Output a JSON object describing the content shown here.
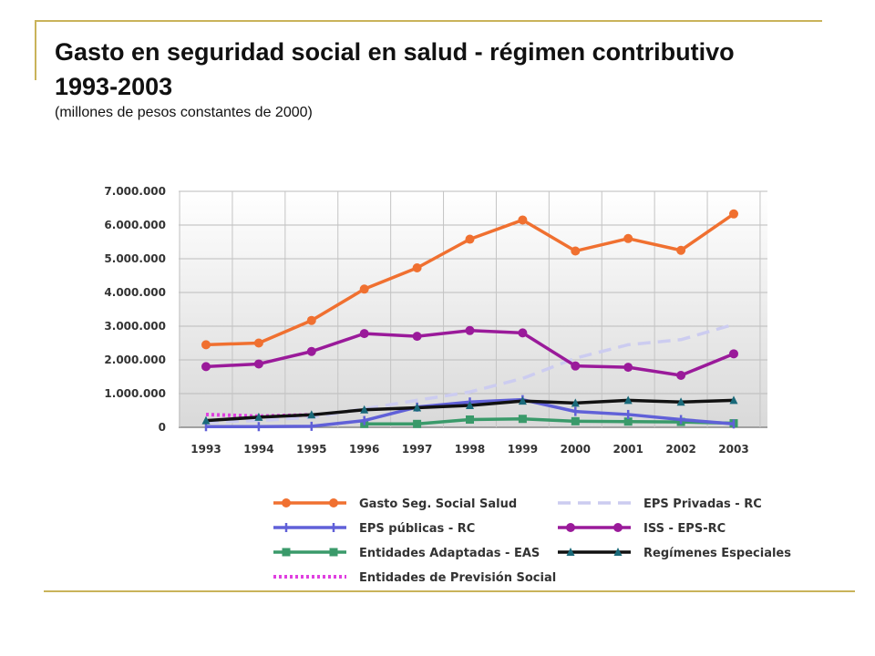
{
  "header": {
    "title": "Gasto en seguridad social en salud - régimen contributivo  1993-2003",
    "subtitle": "(millones de pesos constantes de 2000)"
  },
  "chart_data": {
    "type": "line",
    "x": [
      "1993",
      "1994",
      "1995",
      "1996",
      "1997",
      "1998",
      "1999",
      "2000",
      "2001",
      "2002",
      "2003"
    ],
    "ylim": [
      0,
      7000000
    ],
    "yticks": [
      0,
      1000000,
      2000000,
      3000000,
      4000000,
      5000000,
      6000000,
      7000000
    ],
    "ytick_labels": [
      "0",
      "1.000.000",
      "2.000.000",
      "3.000.000",
      "4.000.000",
      "5.000.000",
      "6.000.000",
      "7.000.000"
    ],
    "grid": true,
    "legend_position": "bottom",
    "series": [
      {
        "name": "Gasto Seg. Social Salud",
        "color": "#f07030",
        "marker": "circle",
        "dash": "solid",
        "values": [
          2450000,
          2500000,
          3170000,
          4100000,
          4730000,
          5580000,
          6150000,
          5230000,
          5600000,
          5250000,
          6330000
        ]
      },
      {
        "name": "EPS Privadas - RC",
        "color": "#ccccf0",
        "marker": "none",
        "dash": "dashed",
        "values": [
          150000,
          200000,
          300000,
          550000,
          800000,
          1050000,
          1450000,
          2050000,
          2450000,
          2600000,
          3050000
        ]
      },
      {
        "name": "EPS públicas - RC",
        "color": "#6060d8",
        "marker": "plus",
        "dash": "solid",
        "values": [
          20000,
          20000,
          30000,
          200000,
          600000,
          750000,
          820000,
          470000,
          380000,
          230000,
          100000
        ]
      },
      {
        "name": "ISS - EPS-RC",
        "color": "#9a1a9a",
        "marker": "circle",
        "dash": "solid",
        "values": [
          1800000,
          1880000,
          2250000,
          2780000,
          2700000,
          2870000,
          2800000,
          1820000,
          1780000,
          1540000,
          2180000
        ]
      },
      {
        "name": "Entidades Adaptadas - EAS",
        "color": "#3a9a6a",
        "marker": "square",
        "dash": "solid",
        "values": [
          null,
          null,
          null,
          100000,
          100000,
          230000,
          250000,
          180000,
          170000,
          160000,
          120000
        ]
      },
      {
        "name": "Regímenes Especiales",
        "color": "#111111",
        "marker": "triangle",
        "dash": "solid",
        "values": [
          200000,
          300000,
          370000,
          520000,
          580000,
          650000,
          780000,
          720000,
          800000,
          750000,
          800000
        ]
      },
      {
        "name": "Entidades de Previsión Social",
        "color": "#e040e0",
        "marker": "none",
        "dash": "dotted",
        "values": [
          380000,
          330000,
          370000,
          null,
          null,
          null,
          null,
          null,
          null,
          null,
          null
        ]
      }
    ]
  }
}
